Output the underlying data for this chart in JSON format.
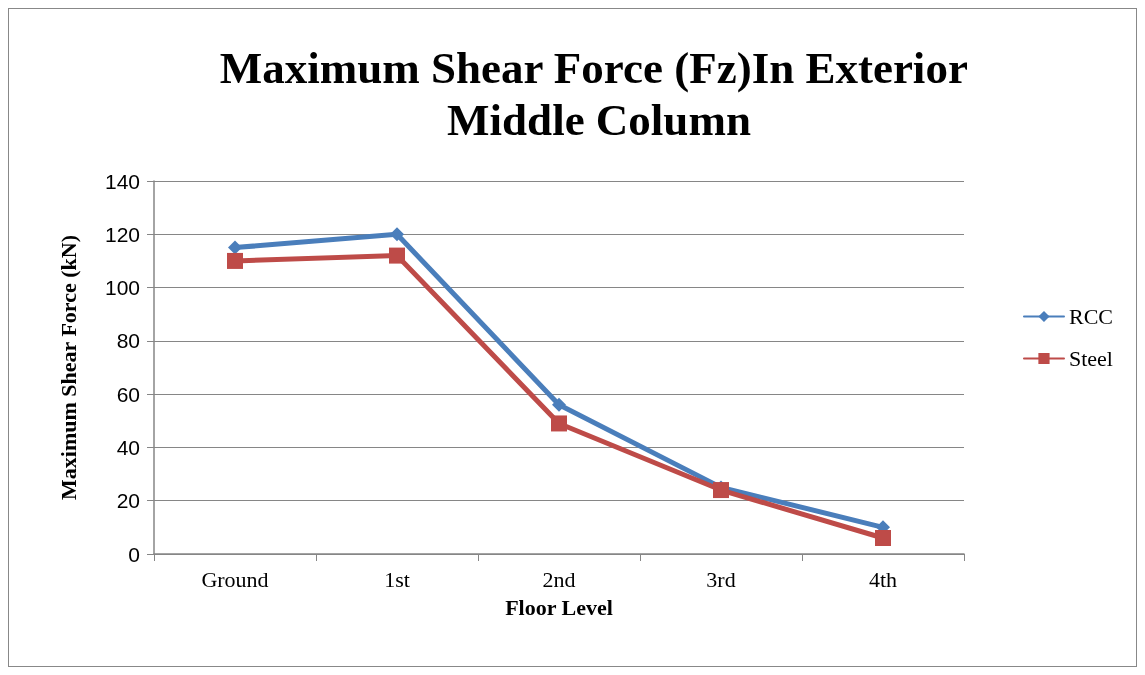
{
  "chart_data": {
    "type": "line",
    "title": "Maximum Shear Force (Fz)In Exterior Middle Column",
    "xlabel": "Floor Level",
    "ylabel": "Maximum Shear Force (kN)",
    "categories": [
      "Ground",
      "1st",
      "2nd",
      "3rd",
      "4th"
    ],
    "series": [
      {
        "name": "RCC",
        "color": "#4a7ebb",
        "marker": "diamond",
        "values": [
          115,
          120,
          56,
          25,
          10
        ]
      },
      {
        "name": "Steel",
        "color": "#be4b48",
        "marker": "square",
        "values": [
          110,
          112,
          49,
          24,
          6
        ]
      }
    ],
    "ylim": [
      0,
      140
    ],
    "yticks": [
      0,
      20,
      40,
      60,
      80,
      100,
      120,
      140
    ],
    "grid": "y",
    "legend": "right",
    "line_style": "solid"
  }
}
